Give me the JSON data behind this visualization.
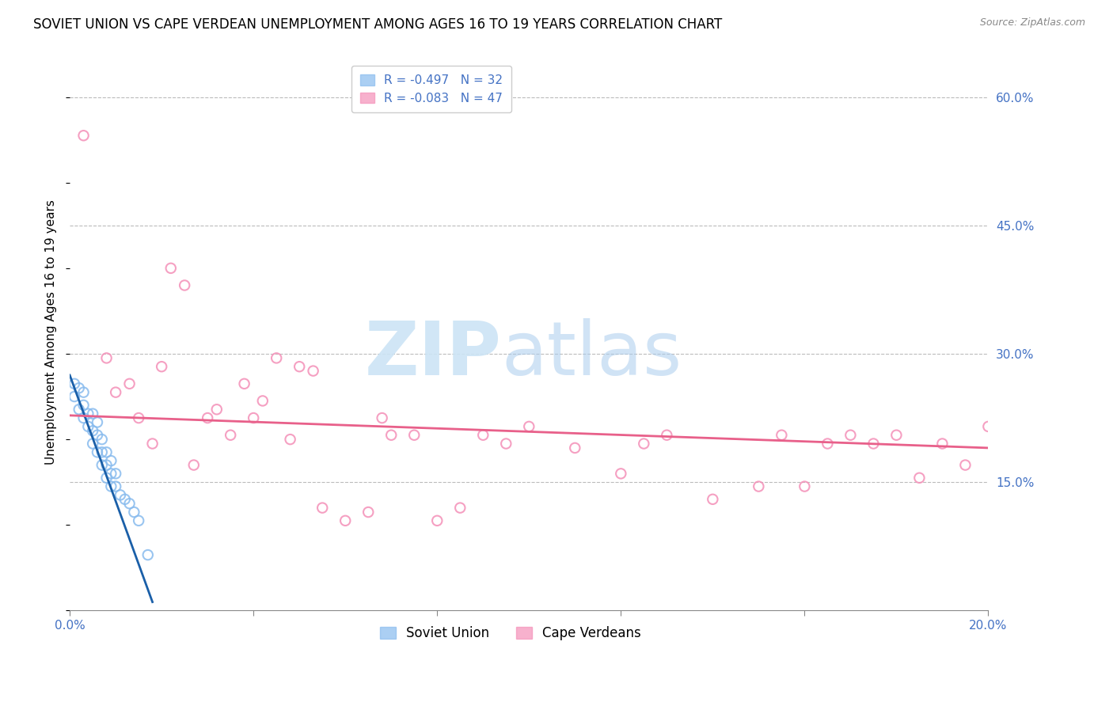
{
  "title": "SOVIET UNION VS CAPE VERDEAN UNEMPLOYMENT AMONG AGES 16 TO 19 YEARS CORRELATION CHART",
  "source": "Source: ZipAtlas.com",
  "ylabel": "Unemployment Among Ages 16 to 19 years",
  "xlim": [
    0.0,
    0.2
  ],
  "ylim": [
    0.0,
    0.65
  ],
  "xticks": [
    0.0,
    0.04,
    0.08,
    0.12,
    0.16,
    0.2
  ],
  "xticklabels": [
    "0.0%",
    "",
    "",
    "",
    "",
    "20.0%"
  ],
  "yticks_right": [
    0.15,
    0.3,
    0.45,
    0.6
  ],
  "ytick_labels_right": [
    "15.0%",
    "30.0%",
    "45.0%",
    "60.0%"
  ],
  "legend_r_soviet": "R = -0.497",
  "legend_n_soviet": "N = 32",
  "legend_r_cape": "R = -0.083",
  "legend_n_cape": "N = 47",
  "legend_title_soviet": "Soviet Union",
  "legend_title_cape": "Cape Verdeans",
  "soviet_scatter_x": [
    0.001,
    0.001,
    0.002,
    0.002,
    0.003,
    0.003,
    0.003,
    0.004,
    0.004,
    0.005,
    0.005,
    0.005,
    0.006,
    0.006,
    0.006,
    0.007,
    0.007,
    0.007,
    0.008,
    0.008,
    0.008,
    0.009,
    0.009,
    0.009,
    0.01,
    0.01,
    0.011,
    0.012,
    0.013,
    0.014,
    0.015,
    0.017
  ],
  "soviet_scatter_y": [
    0.265,
    0.25,
    0.26,
    0.235,
    0.255,
    0.24,
    0.225,
    0.23,
    0.215,
    0.23,
    0.21,
    0.195,
    0.22,
    0.205,
    0.185,
    0.2,
    0.185,
    0.17,
    0.185,
    0.17,
    0.155,
    0.175,
    0.16,
    0.145,
    0.16,
    0.145,
    0.135,
    0.13,
    0.125,
    0.115,
    0.105,
    0.065
  ],
  "soviet_line_x": [
    0.0,
    0.018
  ],
  "soviet_line_y": [
    0.275,
    0.01
  ],
  "cape_scatter_x": [
    0.003,
    0.008,
    0.01,
    0.013,
    0.015,
    0.018,
    0.02,
    0.022,
    0.025,
    0.027,
    0.03,
    0.032,
    0.035,
    0.038,
    0.04,
    0.042,
    0.045,
    0.048,
    0.05,
    0.053,
    0.055,
    0.06,
    0.065,
    0.068,
    0.07,
    0.075,
    0.08,
    0.085,
    0.09,
    0.095,
    0.1,
    0.11,
    0.12,
    0.125,
    0.13,
    0.14,
    0.15,
    0.155,
    0.16,
    0.165,
    0.17,
    0.175,
    0.18,
    0.185,
    0.19,
    0.195,
    0.2
  ],
  "cape_scatter_y": [
    0.555,
    0.295,
    0.255,
    0.265,
    0.225,
    0.195,
    0.285,
    0.4,
    0.38,
    0.17,
    0.225,
    0.235,
    0.205,
    0.265,
    0.225,
    0.245,
    0.295,
    0.2,
    0.285,
    0.28,
    0.12,
    0.105,
    0.115,
    0.225,
    0.205,
    0.205,
    0.105,
    0.12,
    0.205,
    0.195,
    0.215,
    0.19,
    0.16,
    0.195,
    0.205,
    0.13,
    0.145,
    0.205,
    0.145,
    0.195,
    0.205,
    0.195,
    0.205,
    0.155,
    0.195,
    0.17,
    0.215
  ],
  "cape_line_x": [
    0.0,
    0.2
  ],
  "cape_line_y": [
    0.228,
    0.19
  ],
  "dot_size": 80,
  "soviet_color": "#88bbee",
  "cape_color": "#f490b8",
  "soviet_line_color": "#1a5fa8",
  "cape_line_color": "#e8608a",
  "grid_color": "#bbbbbb",
  "background_color": "#ffffff",
  "title_fontsize": 12,
  "axis_label_fontsize": 11,
  "tick_fontsize": 11,
  "right_tick_color": "#4472c4",
  "bottom_tick_color": "#4472c4"
}
